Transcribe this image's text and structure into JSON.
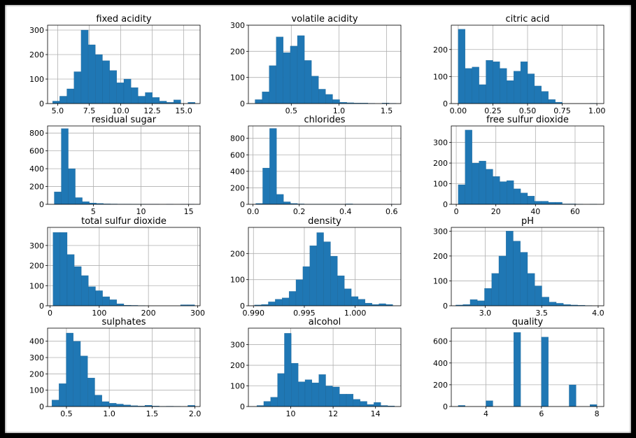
{
  "colors": {
    "bar": "#1f77b4",
    "bar_edge": "#1a5f8f",
    "frame": "#000000",
    "grid": "#b0b0b0"
  },
  "chart_data": [
    {
      "type": "bar",
      "title": "fixed acidity",
      "xlim": [
        4.2,
        16.3
      ],
      "ylim": [
        0,
        320
      ],
      "xticks": [
        5,
        7.5,
        10,
        12.5,
        15
      ],
      "xtick_labels": [
        "5.0",
        "7.5",
        "10.0",
        "12.5",
        "15.0"
      ],
      "yticks": [
        0,
        100,
        200,
        300
      ],
      "ytick_labels": [
        "0",
        "100",
        "200",
        "300"
      ],
      "bin_start": 4.6,
      "bin_width": 0.565,
      "values": [
        10,
        30,
        60,
        130,
        300,
        240,
        200,
        175,
        135,
        85,
        100,
        65,
        30,
        45,
        25,
        10,
        5,
        15,
        0,
        5
      ]
    },
    {
      "type": "bar",
      "title": "volatile acidity",
      "xlim": [
        0.05,
        1.65
      ],
      "ylim": [
        0,
        300
      ],
      "xticks": [
        0.5,
        1.0,
        1.5
      ],
      "xtick_labels": [
        "0.5",
        "1.0",
        "1.5"
      ],
      "yticks": [
        0,
        100,
        200,
        300
      ],
      "ytick_labels": [
        "0",
        "100",
        "200",
        "300"
      ],
      "bin_start": 0.12,
      "bin_width": 0.074,
      "values": [
        15,
        45,
        145,
        255,
        195,
        220,
        260,
        165,
        105,
        55,
        35,
        15,
        5,
        3,
        2,
        2,
        1,
        0,
        2,
        1
      ]
    },
    {
      "type": "bar",
      "title": "citric acid",
      "xlim": [
        -0.05,
        1.05
      ],
      "ylim": [
        0,
        290
      ],
      "xticks": [
        0,
        0.25,
        0.5,
        0.75,
        1.0
      ],
      "xtick_labels": [
        "0.00",
        "0.25",
        "0.50",
        "0.75",
        "1.00"
      ],
      "yticks": [
        0,
        100,
        200
      ],
      "ytick_labels": [
        "0",
        "100",
        "200"
      ],
      "bin_start": 0,
      "bin_width": 0.05,
      "values": [
        275,
        130,
        135,
        70,
        160,
        155,
        130,
        85,
        120,
        155,
        110,
        65,
        45,
        15,
        5,
        0,
        0,
        0,
        0,
        1
      ]
    },
    {
      "type": "bar",
      "title": "residual sugar",
      "xlim": [
        0.2,
        16.2
      ],
      "ylim": [
        0,
        880
      ],
      "xticks": [
        5,
        10,
        15
      ],
      "xtick_labels": [
        "5",
        "10",
        "15"
      ],
      "yticks": [
        0,
        200,
        400,
        600,
        800
      ],
      "ytick_labels": [
        "0",
        "200",
        "400",
        "600",
        "800"
      ],
      "bin_start": 0.9,
      "bin_width": 0.735,
      "values": [
        140,
        850,
        400,
        75,
        30,
        15,
        10,
        5,
        4,
        3,
        3,
        2,
        2,
        1,
        1,
        0,
        1,
        0,
        1,
        1
      ]
    },
    {
      "type": "bar",
      "title": "chlorides",
      "xlim": [
        -0.02,
        0.64
      ],
      "ylim": [
        0,
        950
      ],
      "xticks": [
        0,
        0.2,
        0.4,
        0.6
      ],
      "xtick_labels": [
        "0.0",
        "0.2",
        "0.4",
        "0.6"
      ],
      "yticks": [
        0,
        200,
        400,
        600,
        800
      ],
      "ytick_labels": [
        "0",
        "200",
        "400",
        "600",
        "800"
      ],
      "bin_start": 0.012,
      "bin_width": 0.03,
      "values": [
        10,
        440,
        920,
        120,
        30,
        10,
        5,
        3,
        2,
        2,
        2,
        2,
        1,
        5,
        1,
        1,
        1,
        1,
        0,
        1
      ]
    },
    {
      "type": "bar",
      "title": "free sulfur dioxide",
      "xlim": [
        -2.5,
        74.5
      ],
      "ylim": [
        0,
        380
      ],
      "xticks": [
        0,
        20,
        40,
        60
      ],
      "xtick_labels": [
        "0",
        "20",
        "40",
        "60"
      ],
      "yticks": [
        0,
        100,
        200,
        300
      ],
      "ytick_labels": [
        "0",
        "100",
        "200",
        "300"
      ],
      "bin_start": 1,
      "bin_width": 3.5,
      "values": [
        95,
        360,
        200,
        210,
        170,
        135,
        110,
        115,
        75,
        55,
        40,
        15,
        15,
        10,
        10,
        2,
        2,
        1,
        0,
        1
      ]
    },
    {
      "type": "bar",
      "title": "total sulfur dioxide",
      "xlim": [
        -5,
        305
      ],
      "ylim": [
        0,
        390
      ],
      "xticks": [
        0,
        100,
        200,
        300
      ],
      "xtick_labels": [
        "0",
        "100",
        "200",
        "300"
      ],
      "yticks": [
        0,
        100,
        200,
        300
      ],
      "ytick_labels": [
        "0",
        "100",
        "200",
        "300"
      ],
      "bin_start": 6,
      "bin_width": 14.4,
      "values": [
        365,
        365,
        255,
        195,
        150,
        95,
        75,
        45,
        30,
        10,
        3,
        2,
        1,
        0,
        0,
        0,
        0,
        0,
        5,
        5
      ]
    },
    {
      "type": "bar",
      "title": "density",
      "xlim": [
        0.9895,
        1.0045
      ],
      "ylim": [
        0,
        300
      ],
      "xticks": [
        0.99,
        0.995,
        1.0
      ],
      "xtick_labels": [
        "0.990",
        "0.995",
        "1.000"
      ],
      "yticks": [
        0,
        100,
        200
      ],
      "ytick_labels": [
        "0",
        "100",
        "200"
      ],
      "bin_start": 0.9901,
      "bin_width": 0.00068,
      "values": [
        3,
        5,
        15,
        25,
        30,
        55,
        100,
        150,
        230,
        280,
        245,
        190,
        115,
        65,
        35,
        25,
        10,
        5,
        8,
        5
      ]
    },
    {
      "type": "bar",
      "title": "pH",
      "xlim": [
        2.7,
        4.05
      ],
      "ylim": [
        0,
        315
      ],
      "xticks": [
        3.0,
        3.5,
        4.0
      ],
      "xtick_labels": [
        "3.0",
        "3.5",
        "4.0"
      ],
      "yticks": [
        0,
        100,
        200,
        300
      ],
      "ytick_labels": [
        "0",
        "100",
        "200",
        "300"
      ],
      "bin_start": 2.74,
      "bin_width": 0.0635,
      "values": [
        3,
        5,
        25,
        20,
        70,
        130,
        200,
        300,
        260,
        215,
        130,
        80,
        35,
        15,
        10,
        5,
        3,
        2,
        1,
        0
      ]
    },
    {
      "type": "bar",
      "title": "sulphates",
      "xlim": [
        0.28,
        2.06
      ],
      "ylim": [
        0,
        480
      ],
      "xticks": [
        0.5,
        1.0,
        1.5,
        2.0
      ],
      "xtick_labels": [
        "0.5",
        "1.0",
        "1.5",
        "2.0"
      ],
      "yticks": [
        0,
        100,
        200,
        300,
        400
      ],
      "ytick_labels": [
        "0",
        "100",
        "200",
        "300",
        "400"
      ],
      "bin_start": 0.33,
      "bin_width": 0.0835,
      "values": [
        40,
        140,
        450,
        400,
        310,
        175,
        70,
        30,
        20,
        15,
        10,
        5,
        3,
        8,
        3,
        1,
        2,
        1,
        0,
        7
      ]
    },
    {
      "type": "bar",
      "title": "alcohol",
      "xlim": [
        8.0,
        15.2
      ],
      "ylim": [
        0,
        380
      ],
      "xticks": [
        10,
        12,
        14
      ],
      "xtick_labels": [
        "10",
        "12",
        "14"
      ],
      "yticks": [
        0,
        100,
        200,
        300
      ],
      "ytick_labels": [
        "0",
        "100",
        "200",
        "300"
      ],
      "bin_start": 8.4,
      "bin_width": 0.325,
      "values": [
        5,
        25,
        45,
        160,
        355,
        210,
        120,
        130,
        115,
        155,
        100,
        95,
        60,
        60,
        35,
        25,
        10,
        20,
        5,
        3
      ]
    },
    {
      "type": "bar",
      "title": "quality",
      "xlim": [
        2.75,
        8.25
      ],
      "ylim": [
        0,
        720
      ],
      "xticks": [
        4,
        6,
        8
      ],
      "xtick_labels": [
        "4",
        "6",
        "8"
      ],
      "yticks": [
        0,
        200,
        400,
        600
      ],
      "ytick_labels": [
        "0",
        "200",
        "400",
        "600"
      ],
      "bin_start": 3,
      "bin_width": 0.25,
      "values": [
        10,
        0,
        0,
        0,
        53,
        0,
        0,
        0,
        681,
        0,
        0,
        0,
        638,
        0,
        0,
        0,
        199,
        0,
        0,
        18
      ]
    }
  ]
}
